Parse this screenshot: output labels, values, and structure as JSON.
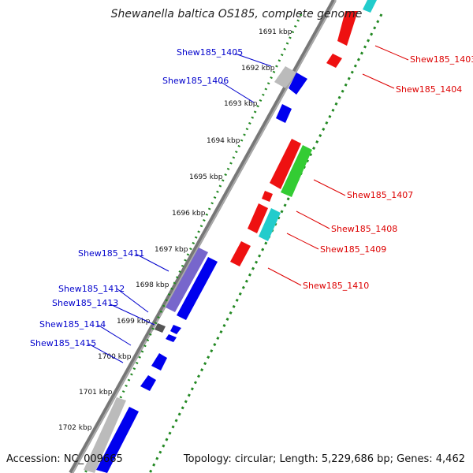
{
  "title": "Shewanella baltica OS185, complete genome",
  "accession": "Accession: NC_009665",
  "topology": "Topology: circular; Length: 5,229,686 bp; Genes: 4,462",
  "colors": {
    "forward_label": "#0000cc",
    "reverse_label": "#dd0000",
    "backbone": "#777777",
    "tick_green": "#228822"
  },
  "kbp_ticks": [
    "1691 kbp",
    "1692 kbp",
    "1693 kbp",
    "1694 kbp",
    "1695 kbp",
    "1696 kbp",
    "1697 kbp",
    "1698 kbp",
    "1699 kbp",
    "1700 kbp",
    "1701 kbp",
    "1702 kbp"
  ],
  "gene_labels_left": [
    "Shew185_1405",
    "Shew185_1406",
    "Shew185_1411",
    "Shew185_1412",
    "Shew185_1413",
    "Shew185_1414",
    "Shew185_1415"
  ],
  "gene_labels_right": [
    "Shew185_1403",
    "Shew185_1404",
    "Shew185_1407",
    "Shew185_1408",
    "Shew185_1409",
    "Shew185_1410"
  ]
}
